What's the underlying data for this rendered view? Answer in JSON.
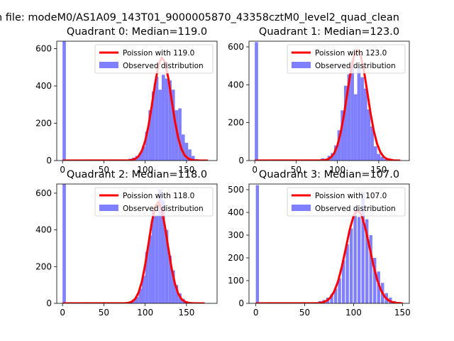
{
  "figure": {
    "suptitle": "n file: modeM0/AS1A09_143T01_9000005870_43358cztM0_level2_quad_clean",
    "colors": {
      "bar": "#8080ff",
      "curve": "#ff0000"
    }
  },
  "chart_data": [
    {
      "type": "bar",
      "title": "Quadrant 0: Median=119.0",
      "xlim": [
        -7,
        187
      ],
      "ylim": [
        0,
        640
      ],
      "xticks": [
        0,
        50,
        100,
        150
      ],
      "yticks": [
        0,
        200,
        400,
        600
      ],
      "bin_width": 4,
      "median": 119.0,
      "legend": {
        "curve_label": "Poission with 119.0",
        "bars_label": "Observed distribution",
        "placement": "upper right"
      },
      "histogram": {
        "x": [
          0,
          80,
          84,
          88,
          92,
          96,
          100,
          104,
          108,
          112,
          116,
          120,
          124,
          128,
          132,
          136,
          140,
          144,
          148,
          152,
          156,
          160
        ],
        "y": [
          640,
          10,
          15,
          25,
          40,
          75,
          155,
          270,
          370,
          450,
          380,
          460,
          440,
          430,
          380,
          270,
          280,
          140,
          95,
          60,
          25,
          8
        ]
      },
      "curve": {
        "x": [
          0,
          80,
          84,
          88,
          92,
          96,
          100,
          104,
          108,
          112,
          116,
          120,
          124,
          128,
          132,
          136,
          140,
          144,
          148,
          152,
          156,
          160,
          168,
          176
        ],
        "y": [
          0,
          1,
          3,
          9,
          23,
          52,
          104,
          186,
          295,
          413,
          510,
          553,
          527,
          442,
          326,
          211,
          121,
          61,
          27,
          11,
          4,
          1,
          0,
          0
        ]
      }
    },
    {
      "type": "bar",
      "title": "Quadrant 1: Median=123.0",
      "xlim": [
        -7,
        187
      ],
      "ylim": [
        0,
        630
      ],
      "xticks": [
        0,
        50,
        100,
        150
      ],
      "yticks": [
        0,
        200,
        400,
        600
      ],
      "bin_width": 4,
      "median": 123.0,
      "legend": {
        "curve_label": "Poission with 123.0",
        "bars_label": "Observed distribution",
        "placement": "upper right"
      },
      "histogram": {
        "x": [
          0,
          68,
          80,
          88,
          92,
          96,
          100,
          104,
          108,
          112,
          116,
          120,
          124,
          128,
          132,
          136,
          140,
          144,
          148,
          152,
          156
        ],
        "y": [
          625,
          5,
          12,
          25,
          40,
          80,
          160,
          265,
          395,
          455,
          530,
          350,
          490,
          440,
          380,
          270,
          180,
          75,
          35,
          20,
          8
        ]
      },
      "curve": {
        "x": [
          0,
          80,
          84,
          88,
          92,
          96,
          100,
          104,
          108,
          112,
          116,
          120,
          124,
          128,
          132,
          136,
          140,
          144,
          148,
          152,
          156,
          160,
          168,
          176
        ],
        "y": [
          0,
          1,
          2,
          6,
          16,
          38,
          79,
          148,
          244,
          357,
          468,
          551,
          584,
          556,
          477,
          366,
          253,
          157,
          88,
          44,
          20,
          8,
          1,
          0
        ]
      }
    },
    {
      "type": "bar",
      "title": "Quadrant 2: Median=118.0",
      "xlim": [
        -7,
        187
      ],
      "ylim": [
        0,
        650
      ],
      "xticks": [
        0,
        50,
        100,
        150
      ],
      "yticks": [
        0,
        200,
        400,
        600
      ],
      "bin_width": 4,
      "median": 118.0,
      "legend": {
        "curve_label": "Poission with 118.0",
        "bars_label": "Observed distribution",
        "placement": "upper right"
      },
      "histogram": {
        "x": [
          0,
          72,
          80,
          84,
          88,
          92,
          96,
          100,
          104,
          108,
          112,
          116,
          120,
          124,
          128,
          132,
          136,
          140,
          144,
          148,
          152
        ],
        "y": [
          650,
          5,
          10,
          20,
          35,
          80,
          150,
          280,
          370,
          510,
          480,
          620,
          560,
          400,
          260,
          180,
          100,
          55,
          25,
          12,
          4
        ]
      },
      "curve": {
        "x": [
          0,
          76,
          80,
          84,
          88,
          92,
          96,
          100,
          104,
          108,
          112,
          116,
          120,
          124,
          128,
          132,
          136,
          140,
          144,
          148,
          152,
          156,
          164,
          172
        ],
        "y": [
          0,
          1,
          3,
          9,
          25,
          58,
          118,
          209,
          324,
          440,
          526,
          552,
          511,
          417,
          300,
          191,
          107,
          53,
          23,
          9,
          3,
          1,
          0,
          0
        ]
      }
    },
    {
      "type": "bar",
      "title": "Quadrant 3: Median=107.0",
      "xlim": [
        -7,
        157
      ],
      "ylim": [
        0,
        525
      ],
      "xticks": [
        0,
        50,
        100,
        150
      ],
      "yticks": [
        0,
        100,
        200,
        300,
        400,
        500
      ],
      "bin_width": 3.2,
      "median": 107.0,
      "legend": {
        "curve_label": "Poission with 107.0",
        "bars_label": "Observed distribution",
        "placement": "upper right"
      },
      "histogram": {
        "x": [
          0,
          60,
          64,
          68,
          72,
          76,
          80,
          84,
          88,
          92,
          96,
          100,
          104,
          108,
          112,
          116,
          120,
          124,
          128,
          132,
          136,
          140,
          144
        ],
        "y": [
          520,
          5,
          10,
          15,
          25,
          40,
          65,
          110,
          190,
          260,
          330,
          420,
          380,
          490,
          370,
          300,
          200,
          140,
          90,
          45,
          25,
          10,
          5
        ]
      },
      "curve": {
        "x": [
          0,
          64,
          68,
          72,
          76,
          80,
          84,
          88,
          92,
          96,
          100,
          104,
          108,
          112,
          116,
          120,
          124,
          128,
          132,
          136,
          140,
          144,
          150
        ],
        "y": [
          0,
          1,
          4,
          10,
          24,
          51,
          95,
          161,
          241,
          323,
          385,
          410,
          390,
          332,
          253,
          173,
          106,
          58,
          28,
          12,
          5,
          2,
          0
        ]
      }
    }
  ]
}
